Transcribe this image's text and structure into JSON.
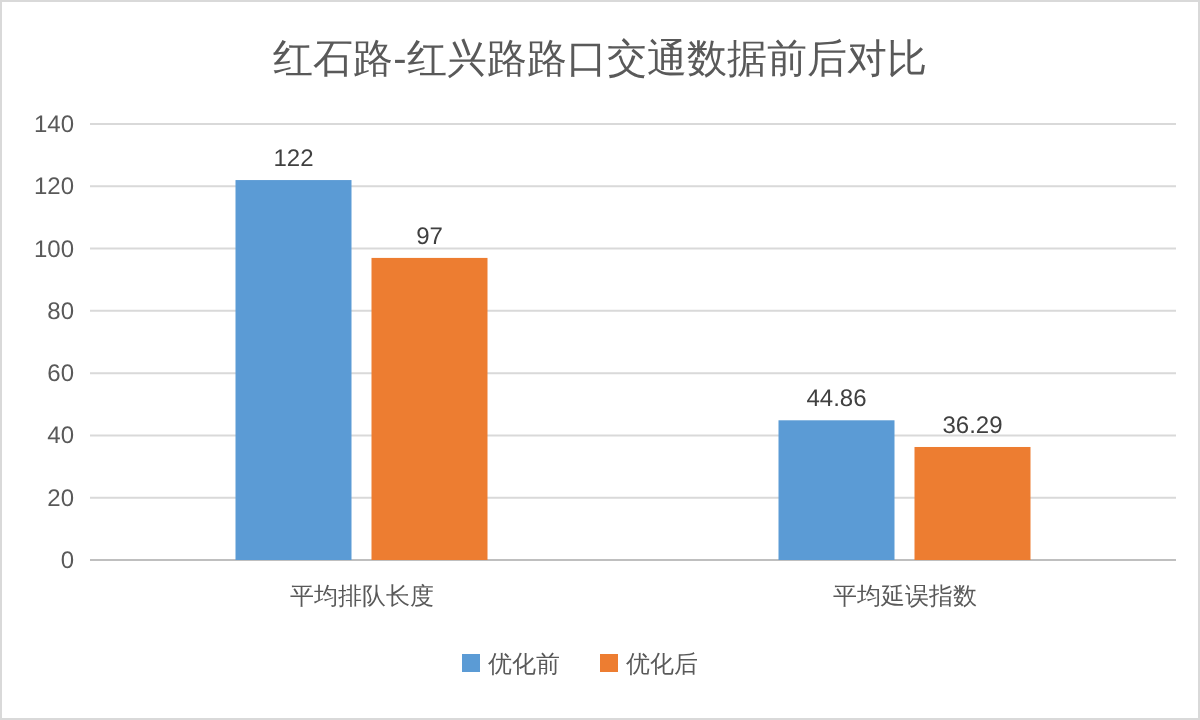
{
  "chart_data": {
    "type": "bar",
    "title": "红石路-红兴路路口交通数据前后对比",
    "categories": [
      "平均排队长度",
      "平均延误指数"
    ],
    "series": [
      {
        "name": "优化前",
        "color": "#5b9bd5",
        "values": [
          122,
          44.86
        ]
      },
      {
        "name": "优化后",
        "color": "#ed7d31",
        "values": [
          97,
          36.29
        ]
      }
    ],
    "ylim": [
      0,
      140
    ],
    "yticks": [
      0,
      20,
      40,
      60,
      80,
      100,
      120,
      140
    ],
    "grid": "y",
    "legend": "bottom",
    "data_labels": true
  }
}
